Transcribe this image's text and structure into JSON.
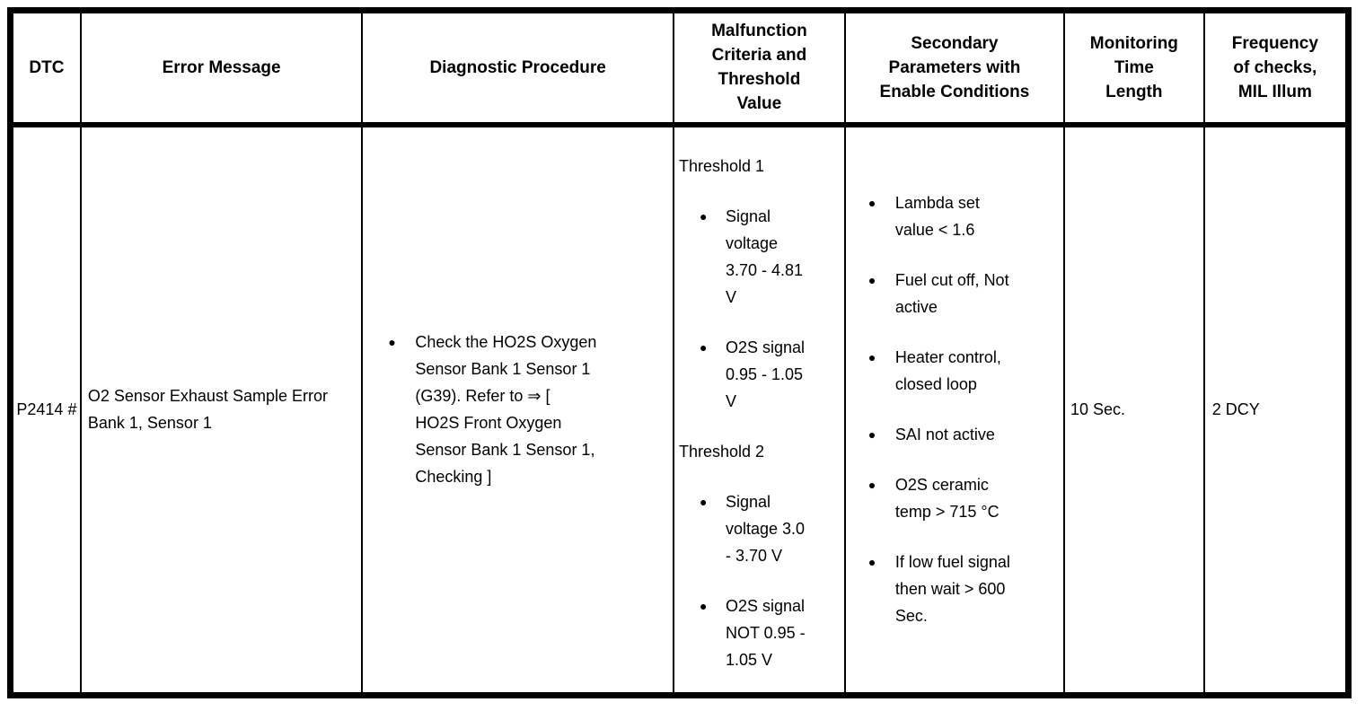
{
  "colors": {
    "page_background": "#ffffff",
    "border": "#000000",
    "text": "#000000"
  },
  "icons": {
    "bullet": "●",
    "refer_arrow": "⇒"
  },
  "table": {
    "headers": [
      "DTC",
      "Error Message",
      "Diagnostic Procedure",
      "Malfunction\nCriteria and\nThreshold\nValue",
      "Secondary\nParameters with\nEnable Conditions",
      "Monitoring\nTime\nLength",
      "Frequency\nof checks,\nMIL Illum"
    ],
    "row": {
      "dtc": "P2414\n#",
      "error_message": "O2 Sensor Exhaust\nSample Error Bank 1,\nSensor 1",
      "diagnostic_procedure": [
        "Check the HO2S Oxygen\nSensor Bank 1 Sensor 1\n(G39). Refer to ⇒ [\nHO2S Front Oxygen\nSensor Bank 1 Sensor 1,\nChecking ]"
      ],
      "malfunction_criteria": [
        {
          "type": "title",
          "text": "Threshold 1"
        },
        {
          "type": "bullet",
          "text": "Signal\nvoltage\n3.70 - 4.81\nV"
        },
        {
          "type": "bullet",
          "text": "O2S signal\n0.95 - 1.05\nV"
        },
        {
          "type": "title",
          "text": "Threshold 2"
        },
        {
          "type": "bullet",
          "text": "Signal\nvoltage 3.0\n- 3.70 V"
        },
        {
          "type": "bullet",
          "text": "O2S signal\nNOT 0.95 -\n1.05 V"
        }
      ],
      "secondary_parameters": [
        "Lambda set\nvalue < 1.6",
        "Fuel cut off, Not\nactive",
        "Heater control,\nclosed loop",
        "SAI not active",
        "O2S ceramic\ntemp > 715 °C",
        "If low fuel signal\nthen wait > 600\nSec."
      ],
      "monitoring_time": "10 Sec.",
      "frequency": "2 DCY"
    }
  }
}
